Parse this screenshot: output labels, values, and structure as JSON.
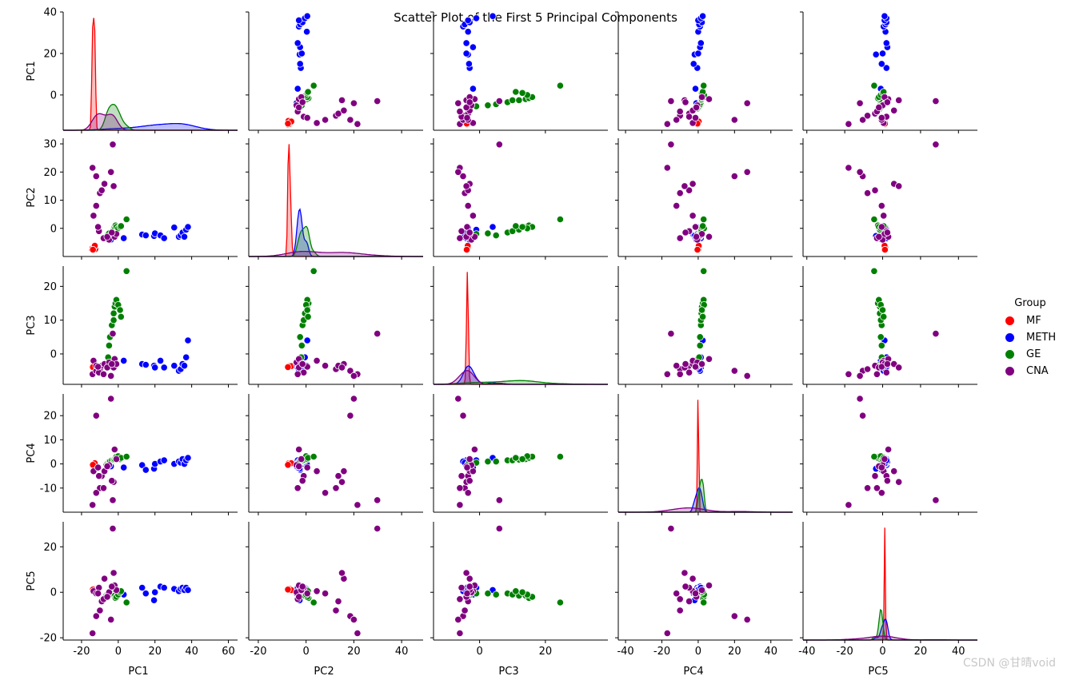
{
  "chart_data": {
    "type": "scatter",
    "title": "Scatter Plot of the First 5 Principal Components",
    "variables": [
      "PC1",
      "PC2",
      "PC3",
      "PC4",
      "PC5"
    ],
    "legend": {
      "title": "Group",
      "placement": "right",
      "entries": [
        {
          "name": "MF",
          "color": "#ff0000"
        },
        {
          "name": "METH",
          "color": "#0000ff"
        },
        {
          "name": "GE",
          "color": "#008000"
        },
        {
          "name": "CNA",
          "color": "#800080"
        }
      ]
    },
    "axes": {
      "PC1": {
        "range": [
          -30,
          65
        ],
        "row_range": [
          -17,
          40
        ],
        "xticks": [
          "-20",
          "0",
          "20",
          "40",
          "60"
        ],
        "xtick_values": [
          -20,
          0,
          20,
          40,
          60
        ],
        "yticks": [
          "40",
          "20",
          "0"
        ],
        "ytick_values": [
          40,
          20,
          0
        ]
      },
      "PC2": {
        "range": [
          -24,
          49
        ],
        "row_range": [
          -10,
          32
        ],
        "xticks": [
          "-20",
          "0",
          "20",
          "40"
        ],
        "xtick_values": [
          -20,
          0,
          20,
          40
        ],
        "yticks": [
          "30",
          "20",
          "10",
          "0"
        ],
        "ytick_values": [
          30,
          20,
          10,
          0
        ]
      },
      "PC3": {
        "range": [
          -14,
          39
        ],
        "row_range": [
          -9,
          26
        ],
        "xticks": [
          "0",
          "20"
        ],
        "xtick_values": [
          0,
          20
        ],
        "yticks": [
          "20",
          "10",
          "0"
        ],
        "ytick_values": [
          20,
          10,
          0
        ]
      },
      "PC4": {
        "range": [
          -44,
          52
        ],
        "row_range": [
          -20,
          29
        ],
        "xticks": [
          "-40",
          "-20",
          "0",
          "20",
          "40"
        ],
        "xtick_values": [
          -40,
          -20,
          0,
          20,
          40
        ],
        "yticks": [
          "20",
          "10",
          "0",
          "-10"
        ],
        "ytick_values": [
          20,
          10,
          0,
          -10
        ]
      },
      "PC5": {
        "range": [
          -42,
          50
        ],
        "row_range": [
          -21,
          31
        ],
        "xticks": [
          "-40",
          "-20",
          "0",
          "20",
          "40"
        ],
        "xtick_values": [
          -40,
          -20,
          0,
          20,
          40
        ],
        "yticks": [
          "20",
          "0",
          "-20"
        ],
        "ytick_values": [
          20,
          0,
          -20
        ]
      }
    },
    "series": [
      {
        "name": "MF",
        "points": [
          [
            -14.3,
            -7.5,
            -3.8,
            -0.3,
            1.2
          ],
          [
            -13.6,
            -7.2,
            -3.7,
            -0.1,
            1.0
          ],
          [
            -13.0,
            -6.9,
            -3.6,
            0.1,
            1.3
          ],
          [
            -12.5,
            -7.4,
            -3.8,
            0.2,
            0.9
          ],
          [
            -14.0,
            -7.0,
            -3.7,
            -0.2,
            1.1
          ],
          [
            -13.2,
            -6.6,
            -3.5,
            0.0,
            1.4
          ],
          [
            -12.8,
            -6.2,
            -3.6,
            0.3,
            1.0
          ],
          [
            -13.8,
            -7.6,
            -3.9,
            -0.4,
            1.2
          ]
        ]
      },
      {
        "name": "METH",
        "points": [
          [
            13.0,
            -2.2,
            -3.0,
            -0.5,
            2.0
          ],
          [
            15.0,
            -2.5,
            -3.2,
            -2.5,
            -0.5
          ],
          [
            19.5,
            -2.7,
            -3.5,
            -2.0,
            -3.5
          ],
          [
            20.0,
            -1.8,
            -4.0,
            0.0,
            0.0
          ],
          [
            23.0,
            -2.5,
            -2.0,
            1.0,
            2.5
          ],
          [
            25.0,
            -3.5,
            -4.0,
            1.5,
            2.0
          ],
          [
            30.5,
            0.3,
            -3.5,
            0.0,
            1.5
          ],
          [
            33.0,
            -3.0,
            -5.0,
            1.0,
            0.5
          ],
          [
            34.0,
            -2.5,
            -4.5,
            0.5,
            1.5
          ],
          [
            35.0,
            -1.5,
            -3.0,
            2.0,
            2.0
          ],
          [
            36.0,
            -3.0,
            -3.5,
            0.0,
            1.0
          ],
          [
            37.0,
            -0.5,
            -1.0,
            1.5,
            2.0
          ],
          [
            38.0,
            0.5,
            4.0,
            2.5,
            1.0
          ],
          [
            3.0,
            -3.5,
            -2.0,
            -1.5,
            -1.0
          ],
          [
            -4.0,
            -4.0,
            -3.0,
            -1.0,
            -0.5
          ]
        ]
      },
      {
        "name": "GE",
        "points": [
          [
            -6.5,
            -3.0,
            -3.0,
            -0.2,
            -1.2
          ],
          [
            -6.0,
            -3.2,
            -3.3,
            0.3,
            -0.8
          ],
          [
            -5.5,
            -2.0,
            -1.0,
            0.5,
            -0.5
          ],
          [
            -5.0,
            -1.8,
            2.5,
            1.0,
            -0.5
          ],
          [
            -4.5,
            -2.5,
            5.0,
            1.0,
            -1.0
          ],
          [
            -3.5,
            -1.5,
            8.5,
            1.5,
            -0.5
          ],
          [
            -2.5,
            -1.0,
            10.0,
            1.5,
            -1.0
          ],
          [
            -2.5,
            -0.5,
            12.0,
            1.8,
            -1.5
          ],
          [
            -2.0,
            0.5,
            14.0,
            2.0,
            -1.5
          ],
          [
            -1.5,
            1.0,
            15.0,
            2.5,
            -2.5
          ],
          [
            -1.0,
            0.5,
            16.0,
            3.0,
            -2.0
          ],
          [
            0.0,
            0.0,
            14.5,
            3.2,
            -1.0
          ],
          [
            1.0,
            0.5,
            13.0,
            2.0,
            0.0
          ],
          [
            1.5,
            0.8,
            11.0,
            2.5,
            0.5
          ],
          [
            4.5,
            3.2,
            24.5,
            3.0,
            -4.5
          ]
        ]
      },
      {
        "name": "CNA",
        "points": [
          [
            -3.0,
            29.8,
            6.0,
            -15.0,
            28.0
          ],
          [
            -14.0,
            21.5,
            -6.0,
            -17.0,
            -18.0
          ],
          [
            -12.0,
            18.5,
            -5.0,
            20.0,
            -10.5
          ],
          [
            -4.0,
            20.0,
            -6.5,
            27.0,
            -12.0
          ],
          [
            -10.0,
            12.5,
            -4.5,
            -10.0,
            -8.0
          ],
          [
            -9.0,
            13.5,
            -3.5,
            -5.0,
            -4.0
          ],
          [
            -7.5,
            15.8,
            -3.0,
            -3.0,
            6.0
          ],
          [
            -2.5,
            15.0,
            -4.0,
            -7.5,
            8.5
          ],
          [
            -13.5,
            4.5,
            -2.0,
            -3.0,
            0.5
          ],
          [
            -12.0,
            8.0,
            -3.5,
            -12.0,
            -0.5
          ],
          [
            -10.5,
            -1.0,
            -5.5,
            -5.0,
            2.0
          ],
          [
            -8.0,
            -3.5,
            -6.0,
            -10.0,
            -3.0
          ],
          [
            -5.0,
            -4.0,
            -2.5,
            -0.5,
            0.0
          ],
          [
            -2.0,
            -3.0,
            -1.5,
            6.0,
            3.0
          ],
          [
            -1.0,
            -2.0,
            -3.0,
            2.0,
            1.0
          ],
          [
            -6.0,
            -3.0,
            -4.0,
            -1.0,
            -2.0
          ],
          [
            -11.0,
            0.5,
            -3.8,
            -1.5,
            -0.5
          ],
          [
            -3.5,
            -1.5,
            -3.0,
            -7.0,
            2.5
          ]
        ]
      }
    ]
  },
  "watermark": "CSDN @甘晴void"
}
